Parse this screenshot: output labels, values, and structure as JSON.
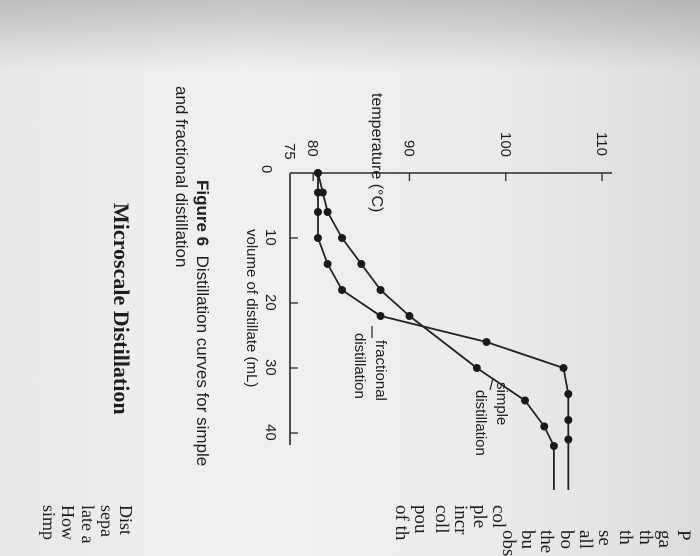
{
  "figure": {
    "label": "Figure 6",
    "caption_line1": "Distillation curves for simple",
    "caption_line2": "and fractional distillation"
  },
  "section_heading": "Microscale Distillation",
  "margin_text": {
    "right_column": [
      "P",
      "ga",
      "th",
      "th",
      "se",
      "all",
      "bo",
      "the",
      "bu",
      "obs",
      "col",
      "ple",
      "incr",
      "coll",
      "pou",
      "of th"
    ],
    "bottom_column": [
      "Dist",
      "sepa",
      "late a",
      "How",
      "simp"
    ]
  },
  "chart_data": {
    "type": "line",
    "xlabel": "volume of distillate (mL)",
    "ylabel": "temperature (°C)",
    "xlim": [
      0,
      45
    ],
    "ylim": [
      75,
      110
    ],
    "x_ticks": [
      0,
      10,
      20,
      30,
      40
    ],
    "y_ticks": [
      75,
      80,
      90,
      100,
      110
    ],
    "y_tick_labels": [
      "75",
      "80",
      "90",
      "100",
      "110"
    ],
    "x_tick_labels": [
      "0",
      "10",
      "20",
      "30",
      "40"
    ],
    "series": [
      {
        "name": "simple distillation",
        "x": [
          0,
          3,
          6,
          10,
          14,
          18,
          22,
          30,
          35,
          39,
          42
        ],
        "y": [
          80.5,
          81,
          81.5,
          83,
          85,
          87,
          90,
          97,
          102,
          104,
          105
        ]
      },
      {
        "name": "fractional distillation",
        "x": [
          0,
          3,
          6,
          10,
          14,
          18,
          22,
          26,
          30,
          34,
          38,
          41
        ],
        "y": [
          80.5,
          80.5,
          80.5,
          80.5,
          81.5,
          83,
          87,
          98,
          106,
          106.5,
          106.5,
          106.5
        ]
      }
    ],
    "annotations": [
      {
        "text_line1": "simple",
        "text_line2": "distillation",
        "series": "simple distillation"
      },
      {
        "text_line1": "fractional",
        "text_line2": "distillation",
        "series": "fractional distillation"
      }
    ]
  }
}
